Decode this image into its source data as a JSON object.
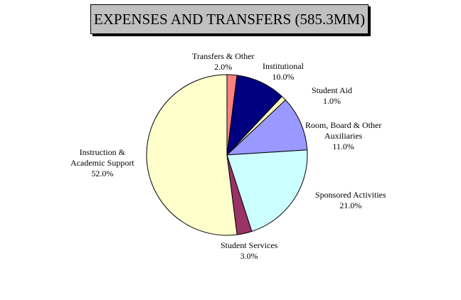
{
  "chart_data": {
    "type": "pie",
    "title": "EXPENSES AND TRANSFERS (585.3MM)",
    "slices": [
      {
        "label": "Transfers & Other",
        "label_lines": [
          "Transfers & Other"
        ],
        "percent_text": "2.0%",
        "value": 2.0,
        "color": "#ff8080"
      },
      {
        "label": "Institutional",
        "label_lines": [
          "Institutional"
        ],
        "percent_text": "10.0%",
        "value": 10.0,
        "color": "#000080"
      },
      {
        "label": "Student Aid",
        "label_lines": [
          "Student Aid"
        ],
        "percent_text": "1.0%",
        "value": 1.0,
        "color": "#ffffc0"
      },
      {
        "label": "Room, Board & Other Auxiliaries",
        "label_lines": [
          "Room, Board & Other",
          "Auxiliaries"
        ],
        "percent_text": "11.0%",
        "value": 11.0,
        "color": "#9999ff"
      },
      {
        "label": "Sponsored Activities",
        "label_lines": [
          "Sponsored Activities"
        ],
        "percent_text": "21.0%",
        "value": 21.0,
        "color": "#ccffff"
      },
      {
        "label": "Student Services",
        "label_lines": [
          "Student Services"
        ],
        "percent_text": "3.0%",
        "value": 3.0,
        "color": "#993366"
      },
      {
        "label": "Instruction & Academic Support",
        "label_lines": [
          "Instruction &",
          "Academic Support"
        ],
        "percent_text": "52.0%",
        "value": 52.0,
        "color": "#ffffcc"
      }
    ]
  }
}
